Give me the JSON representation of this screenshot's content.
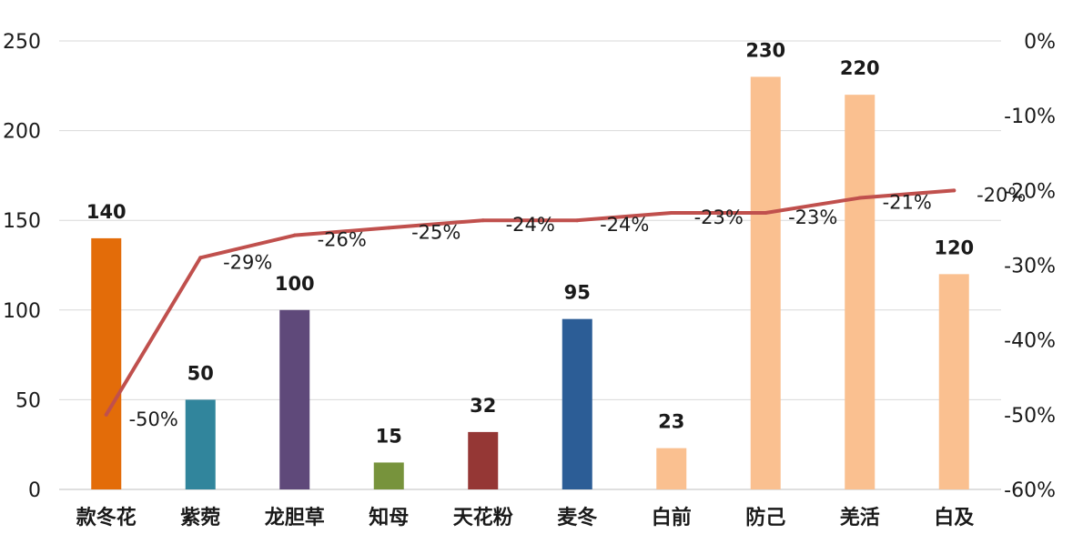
{
  "chart_data": {
    "type": "bar",
    "categories": [
      "款冬花",
      "紫菀",
      "龙胆草",
      "知母",
      "天花粉",
      "麦冬",
      "白前",
      "防己",
      "羌活",
      "白及"
    ],
    "series": [
      {
        "axis": "left",
        "kind": "bar",
        "values": [
          140,
          50,
          100,
          15,
          32,
          95,
          23,
          230,
          220,
          120
        ],
        "colors": [
          "#E36C09",
          "#31859C",
          "#5F497A",
          "#77933C",
          "#953735",
          "#2C5D96",
          "#FAC090",
          "#FAC090",
          "#FAC090",
          "#FAC090"
        ]
      },
      {
        "axis": "right",
        "kind": "line",
        "values": [
          -50,
          -29,
          -26,
          -25,
          -24,
          -24,
          -23,
          -23,
          -21,
          -20
        ],
        "labels": [
          "-50%",
          "-29%",
          "-26%",
          "-25%",
          "-24%",
          "-24%",
          "-23%",
          "-23%",
          "-21%",
          "-20%"
        ],
        "color": "#C0504D"
      }
    ],
    "y_left": {
      "ylim": [
        0,
        250
      ],
      "ticks": [
        0,
        50,
        100,
        150,
        200,
        250
      ]
    },
    "y_right": {
      "ylim": [
        -60,
        0
      ],
      "ticks": [
        "-60%",
        "-50%",
        "-40%",
        "-30%",
        "-20%",
        "-10%",
        "0%"
      ]
    },
    "grid": "horizontal",
    "title": "",
    "xlabel": "",
    "ylabel": ""
  }
}
